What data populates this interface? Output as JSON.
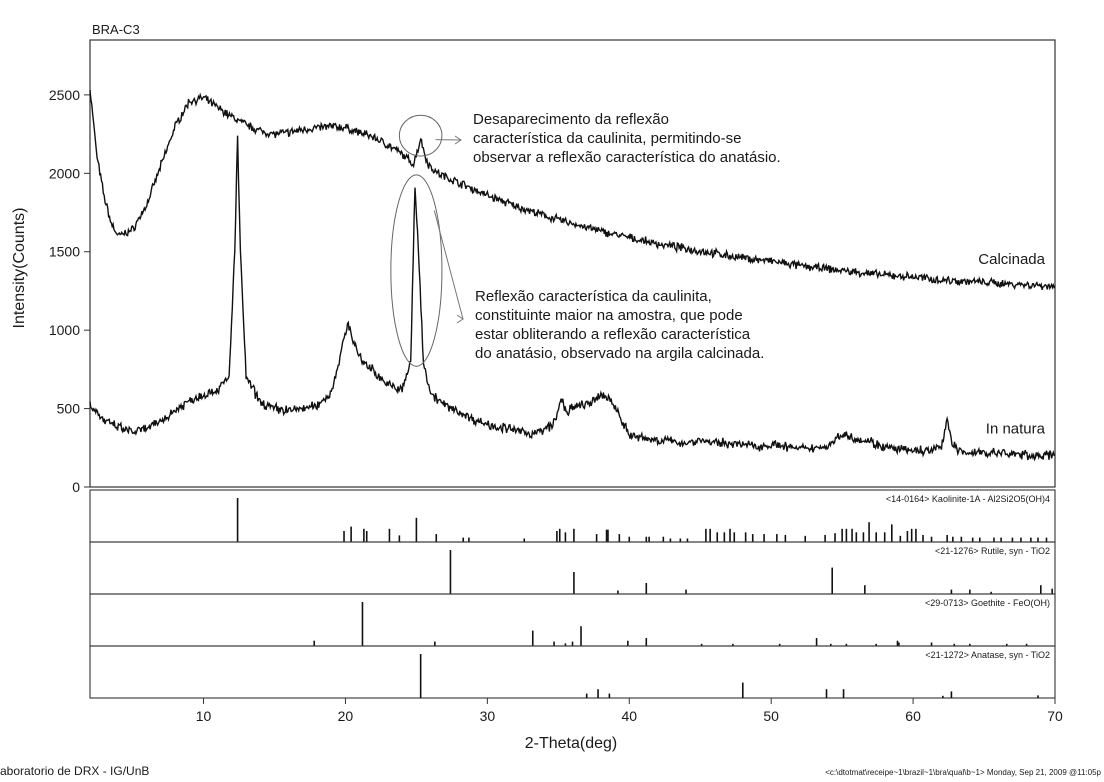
{
  "chart_data": {
    "type": "line",
    "sample_title": "BRA-C3",
    "xlabel": "2-Theta(deg)",
    "ylabel": "Intensity(Counts)",
    "xlim": [
      2,
      70
    ],
    "ylim": [
      0,
      2850
    ],
    "x_ticks": [
      10,
      20,
      30,
      40,
      50,
      60,
      70
    ],
    "y_ticks": [
      0,
      500,
      1000,
      1500,
      2000,
      2500
    ],
    "grid": false,
    "series": [
      {
        "name": "Calcinada",
        "label_position": "right",
        "points": [
          [
            2,
            2540
          ],
          [
            2.5,
            2100
          ],
          [
            3,
            1850
          ],
          [
            3.5,
            1680
          ],
          [
            4,
            1600
          ],
          [
            5,
            1640
          ],
          [
            6,
            1800
          ],
          [
            7,
            2050
          ],
          [
            8,
            2300
          ],
          [
            9,
            2460
          ],
          [
            10,
            2480
          ],
          [
            11,
            2420
          ],
          [
            12,
            2360
          ],
          [
            13,
            2310
          ],
          [
            14,
            2270
          ],
          [
            15,
            2250
          ],
          [
            16,
            2260
          ],
          [
            17,
            2280
          ],
          [
            18,
            2290
          ],
          [
            19,
            2300
          ],
          [
            20,
            2290
          ],
          [
            21,
            2260
          ],
          [
            22,
            2230
          ],
          [
            23,
            2180
          ],
          [
            24,
            2120
          ],
          [
            24.8,
            2060
          ],
          [
            25.3,
            2220
          ],
          [
            25.8,
            2060
          ],
          [
            26.5,
            2000
          ],
          [
            28,
            1940
          ],
          [
            30,
            1860
          ],
          [
            32,
            1790
          ],
          [
            34,
            1730
          ],
          [
            36,
            1680
          ],
          [
            38,
            1630
          ],
          [
            40,
            1590
          ],
          [
            42,
            1550
          ],
          [
            44,
            1520
          ],
          [
            46,
            1490
          ],
          [
            48,
            1460
          ],
          [
            50,
            1440
          ],
          [
            52,
            1410
          ],
          [
            54,
            1390
          ],
          [
            56,
            1370
          ],
          [
            58,
            1350
          ],
          [
            60,
            1340
          ],
          [
            62,
            1320
          ],
          [
            64,
            1310
          ],
          [
            66,
            1300
          ],
          [
            68,
            1290
          ],
          [
            70,
            1280
          ]
        ]
      },
      {
        "name": "In natura",
        "label_position": "right",
        "points": [
          [
            2,
            530
          ],
          [
            3,
            420
          ],
          [
            4,
            380
          ],
          [
            5,
            350
          ],
          [
            6,
            370
          ],
          [
            7,
            420
          ],
          [
            8,
            490
          ],
          [
            9,
            550
          ],
          [
            10,
            590
          ],
          [
            11,
            620
          ],
          [
            11.8,
            700
          ],
          [
            12.2,
            1500
          ],
          [
            12.4,
            2220
          ],
          [
            12.6,
            1500
          ],
          [
            13,
            700
          ],
          [
            14,
            540
          ],
          [
            15,
            500
          ],
          [
            16,
            490
          ],
          [
            17,
            500
          ],
          [
            18,
            520
          ],
          [
            19,
            600
          ],
          [
            19.8,
            900
          ],
          [
            20.2,
            1050
          ],
          [
            20.6,
            920
          ],
          [
            21,
            820
          ],
          [
            22,
            740
          ],
          [
            23,
            650
          ],
          [
            24,
            620
          ],
          [
            24.6,
            800
          ],
          [
            24.9,
            1920
          ],
          [
            25.2,
            1400
          ],
          [
            25.5,
            800
          ],
          [
            26,
            600
          ],
          [
            27,
            520
          ],
          [
            28,
            480
          ],
          [
            29,
            430
          ],
          [
            30,
            400
          ],
          [
            31,
            380
          ],
          [
            32,
            360
          ],
          [
            33,
            340
          ],
          [
            34,
            360
          ],
          [
            34.8,
            420
          ],
          [
            35.2,
            560
          ],
          [
            35.6,
            480
          ],
          [
            36,
            500
          ],
          [
            36.6,
            520
          ],
          [
            37.5,
            540
          ],
          [
            38,
            590
          ],
          [
            38.6,
            560
          ],
          [
            39.2,
            480
          ],
          [
            40,
            330
          ],
          [
            41,
            310
          ],
          [
            42,
            300
          ],
          [
            43,
            290
          ],
          [
            44,
            280
          ],
          [
            45,
            300
          ],
          [
            46,
            280
          ],
          [
            47,
            280
          ],
          [
            48,
            270
          ],
          [
            49,
            260
          ],
          [
            50,
            270
          ],
          [
            51,
            260
          ],
          [
            52,
            240
          ],
          [
            53,
            250
          ],
          [
            54,
            260
          ],
          [
            55,
            340
          ],
          [
            56,
            310
          ],
          [
            57,
            290
          ],
          [
            58,
            250
          ],
          [
            59,
            240
          ],
          [
            60,
            230
          ],
          [
            61,
            230
          ],
          [
            62,
            250
          ],
          [
            62.4,
            440
          ],
          [
            62.8,
            260
          ],
          [
            63.5,
            220
          ],
          [
            65,
            220
          ],
          [
            67,
            210
          ],
          [
            68.5,
            200
          ],
          [
            70,
            200
          ]
        ]
      }
    ],
    "annotations": [
      {
        "target": "Calcinada",
        "ellipse_center": [
          25.3,
          2240
        ],
        "ellipse_radii": [
          1.5,
          130
        ],
        "lines": [
          "Desaparecimento da reflexão",
          "característica da caulinita, permitindo-se",
          "observar a reflexão característica do anatásio."
        ]
      },
      {
        "target": "In natura",
        "ellipse_center": [
          25.0,
          1380
        ],
        "ellipse_radii": [
          1.8,
          610
        ],
        "lines": [
          "Reflexão característica da caulinita,",
          "constituinte maior na amostra, que pode",
          "estar obliterando a reflexão característica",
          "do anatásio, observado na argila calcinada."
        ]
      }
    ],
    "reference_patterns": [
      {
        "label": "<14-0164> Kaolinite-1A - Al2Si2O5(OH)4",
        "peaks": [
          [
            12.4,
            100
          ],
          [
            19.9,
            25
          ],
          [
            20.4,
            35
          ],
          [
            21.3,
            30
          ],
          [
            21.5,
            25
          ],
          [
            23.1,
            30
          ],
          [
            23.8,
            15
          ],
          [
            25.0,
            55
          ],
          [
            26.4,
            18
          ],
          [
            28.3,
            10
          ],
          [
            28.7,
            10
          ],
          [
            32.6,
            8
          ],
          [
            34.9,
            25
          ],
          [
            35.1,
            30
          ],
          [
            35.5,
            22
          ],
          [
            36.1,
            30
          ],
          [
            37.7,
            18
          ],
          [
            38.4,
            28
          ],
          [
            38.5,
            28
          ],
          [
            39.3,
            18
          ],
          [
            40.0,
            12
          ],
          [
            41.2,
            12
          ],
          [
            41.4,
            12
          ],
          [
            42.4,
            12
          ],
          [
            42.9,
            8
          ],
          [
            43.6,
            8
          ],
          [
            44.1,
            8
          ],
          [
            45.4,
            30
          ],
          [
            45.7,
            30
          ],
          [
            46.2,
            22
          ],
          [
            46.7,
            22
          ],
          [
            47.1,
            30
          ],
          [
            47.4,
            22
          ],
          [
            48.2,
            22
          ],
          [
            48.7,
            18
          ],
          [
            49.5,
            18
          ],
          [
            50.4,
            18
          ],
          [
            51.0,
            16
          ],
          [
            52.4,
            14
          ],
          [
            53.8,
            16
          ],
          [
            54.5,
            20
          ],
          [
            55.0,
            30
          ],
          [
            55.3,
            30
          ],
          [
            55.7,
            30
          ],
          [
            56.0,
            22
          ],
          [
            56.5,
            22
          ],
          [
            56.9,
            45
          ],
          [
            57.4,
            22
          ],
          [
            58.0,
            22
          ],
          [
            58.5,
            40
          ],
          [
            59.1,
            14
          ],
          [
            59.6,
            25
          ],
          [
            59.9,
            30
          ],
          [
            60.2,
            30
          ],
          [
            60.7,
            16
          ],
          [
            61.3,
            12
          ],
          [
            62.4,
            16
          ],
          [
            62.8,
            12
          ],
          [
            63.4,
            12
          ],
          [
            64.2,
            10
          ],
          [
            64.7,
            10
          ],
          [
            65.7,
            10
          ],
          [
            66.2,
            10
          ],
          [
            67.0,
            10
          ],
          [
            67.6,
            10
          ],
          [
            68.3,
            10
          ],
          [
            68.8,
            10
          ],
          [
            69.4,
            10
          ]
        ]
      },
      {
        "label": "<21-1276> Rutile, syn - TiO2",
        "peaks": [
          [
            27.4,
            100
          ],
          [
            36.1,
            50
          ],
          [
            39.2,
            8
          ],
          [
            41.2,
            25
          ],
          [
            44.0,
            10
          ],
          [
            54.3,
            60
          ],
          [
            56.6,
            20
          ],
          [
            62.7,
            10
          ],
          [
            64.0,
            10
          ],
          [
            65.5,
            5
          ],
          [
            69.0,
            20
          ],
          [
            69.8,
            12
          ]
        ]
      },
      {
        "label": "<29-0713> Goethite - FeO(OH)",
        "peaks": [
          [
            17.8,
            12
          ],
          [
            21.2,
            100
          ],
          [
            26.3,
            10
          ],
          [
            33.2,
            35
          ],
          [
            34.7,
            10
          ],
          [
            35.5,
            6
          ],
          [
            36.0,
            10
          ],
          [
            36.6,
            45
          ],
          [
            39.9,
            12
          ],
          [
            41.2,
            18
          ],
          [
            45.1,
            5
          ],
          [
            47.3,
            5
          ],
          [
            50.6,
            5
          ],
          [
            53.2,
            18
          ],
          [
            54.2,
            5
          ],
          [
            55.3,
            5
          ],
          [
            57.4,
            5
          ],
          [
            58.9,
            12
          ],
          [
            59.0,
            8
          ],
          [
            61.3,
            8
          ],
          [
            62.9,
            5
          ],
          [
            64.0,
            5
          ],
          [
            66.6,
            5
          ],
          [
            68.0,
            5
          ]
        ]
      },
      {
        "label": "<21-1272> Anatase, syn - TiO2",
        "peaks": [
          [
            25.3,
            100
          ],
          [
            37.0,
            10
          ],
          [
            37.8,
            20
          ],
          [
            38.6,
            10
          ],
          [
            48.0,
            35
          ],
          [
            53.9,
            20
          ],
          [
            55.1,
            20
          ],
          [
            62.1,
            5
          ],
          [
            62.7,
            15
          ],
          [
            68.8,
            6
          ],
          [
            70.3,
            6
          ]
        ]
      }
    ]
  },
  "footer": {
    "lab": "aboratorio de DRX - IG/UnB",
    "file_info": "<c:\\dtotmat\\receipe~1\\brazil~1\\bra\\qual\\b~1> Monday, Sep 21, 2009 @11:05p"
  }
}
